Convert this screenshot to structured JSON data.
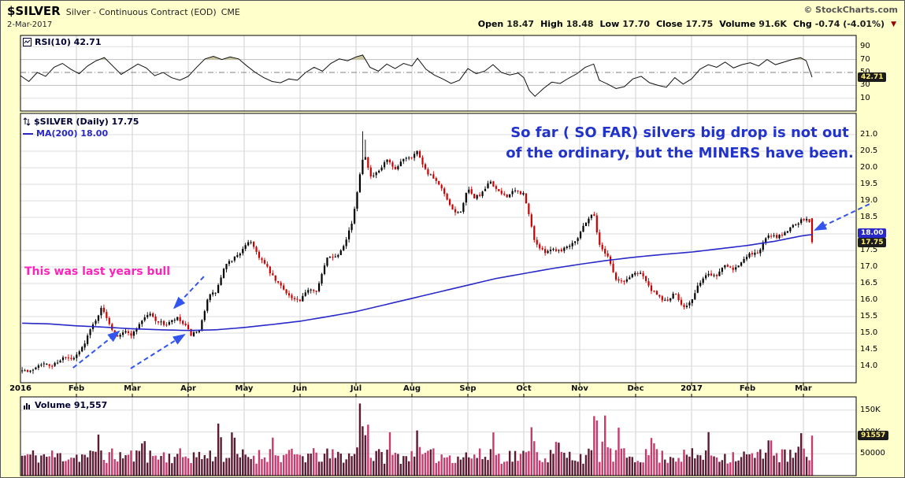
{
  "header": {
    "symbol": "$SILVER",
    "description": "Silver - Continuous Contract (EOD)",
    "exchange": "CME",
    "credit": "© StockCharts.com",
    "date": "2-Mar-2017",
    "quote": [
      {
        "label": "Open",
        "value": "18.47"
      },
      {
        "label": "High",
        "value": "18.48"
      },
      {
        "label": "Low",
        "value": "17.70"
      },
      {
        "label": "Close",
        "value": "17.75"
      },
      {
        "label": "Volume",
        "value": "91.6K"
      },
      {
        "label": "Chg",
        "value": "-0.74 (-4.01%)"
      }
    ],
    "change_direction": "down",
    "down_triangle": "▼"
  },
  "rsi_panel": {
    "legend": "RSI(10) 42.71",
    "last_value": "42.71",
    "axis": [
      "90",
      "70",
      "50",
      "30",
      "10"
    ]
  },
  "main_panel": {
    "legend": "$SILVER (Daily) 17.75",
    "ma_legend": "MA(200) 18.00",
    "last_price": "17.75",
    "ma_value": "18.00",
    "axis": [
      "21.0",
      "20.5",
      "20.0",
      "19.5",
      "19.0",
      "18.5",
      "18.0",
      "17.5",
      "17.0",
      "16.5",
      "16.0",
      "15.5",
      "15.0",
      "14.5",
      "14.0"
    ],
    "annotation_line1": "So far  ( SO FAR) silvers big drop is not out",
    "annotation_line2": "of the ordinary, but the MINERS have been.",
    "annotation_bull": "This was last years bull"
  },
  "volume_panel": {
    "legend": "Volume 91,557",
    "last_value": "91557",
    "axis": [
      {
        "label": "150K",
        "v": 150000
      },
      {
        "label": "100K",
        "v": 100000
      },
      {
        "label": "50000",
        "v": 50000
      }
    ]
  },
  "x_axis": {
    "labels": [
      "2016",
      "Feb",
      "Mar",
      "Apr",
      "May",
      "Jun",
      "Jul",
      "Aug",
      "Sep",
      "Oct",
      "Nov",
      "Dec",
      "2017",
      "Feb",
      "Mar"
    ]
  },
  "colors": {
    "background": "#FFFFCC",
    "panel_bg": "#FFFFFF",
    "candle_up": "#000000",
    "candle_down": "#CC0000",
    "ma_line": "#2929C8",
    "rsi_line": "#111111",
    "rsi_fill": "#C9C49B",
    "vol_up": "#5C1A33",
    "vol_down": "#C73B6E",
    "grid": "#DEDEDE",
    "grid_month": "#CFCFCF",
    "annotation_blue": "#2233CC",
    "annotation_magenta": "#FF22BB",
    "arrow_blue": "#3355EE"
  },
  "chart_data": [
    {
      "type": "line",
      "name": "RSI(10)",
      "panel": "rsi",
      "ylim": [
        0,
        100
      ],
      "ticks": [
        10,
        30,
        50,
        70,
        90
      ],
      "overbought": 70,
      "oversold": 30,
      "midline": 50,
      "last": 42.71,
      "points": [
        [
          0,
          45
        ],
        [
          0.15,
          36
        ],
        [
          0.3,
          50
        ],
        [
          0.45,
          44
        ],
        [
          0.6,
          58
        ],
        [
          0.75,
          64
        ],
        [
          0.9,
          55
        ],
        [
          1.05,
          48
        ],
        [
          1.2,
          60
        ],
        [
          1.35,
          68
        ],
        [
          1.5,
          73
        ],
        [
          1.65,
          60
        ],
        [
          1.8,
          47
        ],
        [
          1.95,
          55
        ],
        [
          2.1,
          63
        ],
        [
          2.25,
          57
        ],
        [
          2.4,
          45
        ],
        [
          2.55,
          50
        ],
        [
          2.7,
          42
        ],
        [
          2.85,
          38
        ],
        [
          3.0,
          44
        ],
        [
          3.15,
          58
        ],
        [
          3.3,
          71
        ],
        [
          3.45,
          75
        ],
        [
          3.6,
          70
        ],
        [
          3.75,
          74
        ],
        [
          3.9,
          71
        ],
        [
          4.05,
          60
        ],
        [
          4.2,
          50
        ],
        [
          4.35,
          42
        ],
        [
          4.5,
          36
        ],
        [
          4.65,
          34
        ],
        [
          4.8,
          40
        ],
        [
          4.95,
          38
        ],
        [
          5.1,
          50
        ],
        [
          5.25,
          58
        ],
        [
          5.4,
          52
        ],
        [
          5.55,
          64
        ],
        [
          5.7,
          71
        ],
        [
          5.85,
          68
        ],
        [
          6.0,
          74
        ],
        [
          6.12,
          77
        ],
        [
          6.25,
          58
        ],
        [
          6.4,
          52
        ],
        [
          6.55,
          63
        ],
        [
          6.7,
          56
        ],
        [
          6.85,
          64
        ],
        [
          7.0,
          60
        ],
        [
          7.1,
          72
        ],
        [
          7.25,
          55
        ],
        [
          7.4,
          46
        ],
        [
          7.55,
          40
        ],
        [
          7.7,
          33
        ],
        [
          7.85,
          38
        ],
        [
          8.0,
          56
        ],
        [
          8.15,
          48
        ],
        [
          8.3,
          52
        ],
        [
          8.45,
          62
        ],
        [
          8.6,
          50
        ],
        [
          8.75,
          46
        ],
        [
          8.9,
          49
        ],
        [
          9.0,
          42
        ],
        [
          9.1,
          22
        ],
        [
          9.2,
          13
        ],
        [
          9.35,
          25
        ],
        [
          9.5,
          35
        ],
        [
          9.65,
          33
        ],
        [
          9.8,
          41
        ],
        [
          9.95,
          48
        ],
        [
          10.1,
          58
        ],
        [
          10.25,
          63
        ],
        [
          10.35,
          38
        ],
        [
          10.5,
          32
        ],
        [
          10.65,
          25
        ],
        [
          10.8,
          28
        ],
        [
          10.95,
          40
        ],
        [
          11.1,
          44
        ],
        [
          11.25,
          34
        ],
        [
          11.4,
          30
        ],
        [
          11.55,
          27
        ],
        [
          11.7,
          42
        ],
        [
          11.85,
          32
        ],
        [
          12.0,
          40
        ],
        [
          12.15,
          55
        ],
        [
          12.3,
          62
        ],
        [
          12.45,
          58
        ],
        [
          12.6,
          66
        ],
        [
          12.75,
          57
        ],
        [
          12.9,
          62
        ],
        [
          13.05,
          65
        ],
        [
          13.2,
          60
        ],
        [
          13.35,
          70
        ],
        [
          13.5,
          62
        ],
        [
          13.65,
          66
        ],
        [
          13.8,
          70
        ],
        [
          13.95,
          73
        ],
        [
          14.05,
          68
        ],
        [
          14.155,
          42.71
        ]
      ]
    },
    {
      "type": "candlestick",
      "name": "$SILVER (Daily)",
      "panel": "main",
      "ylim": [
        13.5,
        21.6
      ],
      "ytick_step": 0.5,
      "x_domain_months": [
        0,
        14.55
      ],
      "last_ohlc": {
        "open": 18.47,
        "high": 18.48,
        "low": 17.7,
        "close": 17.75
      },
      "high_spikes": [
        [
          6.1,
          21.1
        ],
        [
          6.16,
          20.85
        ]
      ],
      "close_anchors": [
        [
          0.0,
          13.95
        ],
        [
          0.15,
          13.8
        ],
        [
          0.35,
          14.1
        ],
        [
          0.55,
          14.0
        ],
        [
          0.75,
          14.25
        ],
        [
          0.95,
          14.2
        ],
        [
          1.1,
          14.55
        ],
        [
          1.25,
          15.1
        ],
        [
          1.45,
          15.75
        ],
        [
          1.55,
          15.45
        ],
        [
          1.7,
          14.9
        ],
        [
          1.85,
          15.05
        ],
        [
          2.0,
          14.95
        ],
        [
          2.15,
          15.35
        ],
        [
          2.3,
          15.6
        ],
        [
          2.45,
          15.35
        ],
        [
          2.6,
          15.25
        ],
        [
          2.8,
          15.45
        ],
        [
          2.95,
          15.2
        ],
        [
          3.05,
          14.95
        ],
        [
          3.2,
          15.05
        ],
        [
          3.35,
          16.1
        ],
        [
          3.5,
          16.25
        ],
        [
          3.65,
          17.0
        ],
        [
          3.8,
          17.25
        ],
        [
          4.0,
          17.55
        ],
        [
          4.1,
          17.85
        ],
        [
          4.25,
          17.35
        ],
        [
          4.4,
          17.0
        ],
        [
          4.55,
          16.6
        ],
        [
          4.7,
          16.35
        ],
        [
          4.85,
          16.05
        ],
        [
          5.0,
          15.95
        ],
        [
          5.15,
          16.35
        ],
        [
          5.3,
          16.3
        ],
        [
          5.5,
          17.35
        ],
        [
          5.65,
          17.3
        ],
        [
          5.8,
          17.75
        ],
        [
          5.95,
          18.45
        ],
        [
          6.1,
          20.2
        ],
        [
          6.18,
          20.4
        ],
        [
          6.25,
          19.7
        ],
        [
          6.4,
          19.85
        ],
        [
          6.55,
          20.25
        ],
        [
          6.7,
          19.9
        ],
        [
          6.85,
          20.3
        ],
        [
          7.0,
          20.35
        ],
        [
          7.1,
          20.5
        ],
        [
          7.25,
          19.9
        ],
        [
          7.4,
          19.65
        ],
        [
          7.55,
          19.3
        ],
        [
          7.7,
          18.75
        ],
        [
          7.85,
          18.6
        ],
        [
          8.0,
          19.35
        ],
        [
          8.1,
          19.1
        ],
        [
          8.25,
          19.2
        ],
        [
          8.4,
          19.6
        ],
        [
          8.55,
          19.25
        ],
        [
          8.7,
          19.15
        ],
        [
          8.85,
          19.3
        ],
        [
          9.0,
          19.2
        ],
        [
          9.1,
          18.5
        ],
        [
          9.2,
          17.75
        ],
        [
          9.35,
          17.45
        ],
        [
          9.5,
          17.55
        ],
        [
          9.65,
          17.5
        ],
        [
          9.8,
          17.65
        ],
        [
          9.95,
          17.85
        ],
        [
          10.1,
          18.35
        ],
        [
          10.25,
          18.65
        ],
        [
          10.35,
          17.65
        ],
        [
          10.5,
          17.35
        ],
        [
          10.65,
          16.6
        ],
        [
          10.8,
          16.55
        ],
        [
          10.95,
          16.8
        ],
        [
          11.1,
          16.85
        ],
        [
          11.25,
          16.35
        ],
        [
          11.4,
          16.1
        ],
        [
          11.55,
          15.95
        ],
        [
          11.7,
          16.2
        ],
        [
          11.85,
          15.8
        ],
        [
          12.0,
          15.95
        ],
        [
          12.15,
          16.55
        ],
        [
          12.3,
          16.8
        ],
        [
          12.45,
          16.75
        ],
        [
          12.6,
          17.1
        ],
        [
          12.75,
          16.95
        ],
        [
          12.9,
          17.15
        ],
        [
          13.05,
          17.4
        ],
        [
          13.2,
          17.45
        ],
        [
          13.35,
          17.95
        ],
        [
          13.5,
          17.9
        ],
        [
          13.65,
          18.0
        ],
        [
          13.8,
          18.25
        ],
        [
          13.95,
          18.4
        ],
        [
          14.05,
          18.45
        ],
        [
          14.1,
          18.42
        ],
        [
          14.155,
          17.75
        ]
      ],
      "ma200": {
        "name": "MA(200)",
        "last": 18.0,
        "anchors": [
          [
            0,
            15.3
          ],
          [
            0.5,
            15.28
          ],
          [
            1,
            15.22
          ],
          [
            1.5,
            15.18
          ],
          [
            2,
            15.13
          ],
          [
            2.5,
            15.1
          ],
          [
            3,
            15.08
          ],
          [
            3.5,
            15.1
          ],
          [
            4,
            15.17
          ],
          [
            4.5,
            15.26
          ],
          [
            5,
            15.36
          ],
          [
            5.5,
            15.5
          ],
          [
            6,
            15.65
          ],
          [
            6.5,
            15.85
          ],
          [
            7,
            16.05
          ],
          [
            7.5,
            16.25
          ],
          [
            8,
            16.45
          ],
          [
            8.5,
            16.65
          ],
          [
            9,
            16.8
          ],
          [
            9.5,
            16.95
          ],
          [
            10,
            17.08
          ],
          [
            10.5,
            17.2
          ],
          [
            11,
            17.3
          ],
          [
            11.5,
            17.38
          ],
          [
            12,
            17.45
          ],
          [
            12.5,
            17.55
          ],
          [
            13,
            17.65
          ],
          [
            13.5,
            17.78
          ],
          [
            14,
            17.95
          ],
          [
            14.3,
            18.0
          ]
        ]
      },
      "arrows": [
        {
          "from": [
            0.94,
            13.95
          ],
          "to": [
            1.76,
            15.05
          ]
        },
        {
          "from": [
            1.97,
            13.93
          ],
          "to": [
            2.93,
            14.95
          ]
        },
        {
          "from": [
            3.28,
            16.71
          ],
          "to": [
            2.75,
            15.76
          ]
        },
        {
          "from": [
            15.18,
            18.9
          ],
          "to": [
            14.21,
            18.12
          ]
        }
      ]
    },
    {
      "type": "bar",
      "name": "Volume",
      "panel": "volume",
      "ylim": [
        0,
        180000
      ],
      "last": 91557,
      "base_range": [
        27000,
        63000
      ],
      "spikes": [
        [
          1.4,
          95000
        ],
        [
          2.2,
          90000
        ],
        [
          3.55,
          125000
        ],
        [
          3.8,
          110000
        ],
        [
          4.5,
          90000
        ],
        [
          6.08,
          170000
        ],
        [
          6.2,
          125000
        ],
        [
          6.6,
          100000
        ],
        [
          7.1,
          105000
        ],
        [
          8.45,
          100000
        ],
        [
          9.15,
          115000
        ],
        [
          9.6,
          90000
        ],
        [
          10.28,
          155000
        ],
        [
          10.45,
          138000
        ],
        [
          10.7,
          110000
        ],
        [
          11.3,
          95000
        ],
        [
          12.3,
          100000
        ],
        [
          13.4,
          95000
        ],
        [
          13.95,
          100000
        ]
      ]
    }
  ]
}
